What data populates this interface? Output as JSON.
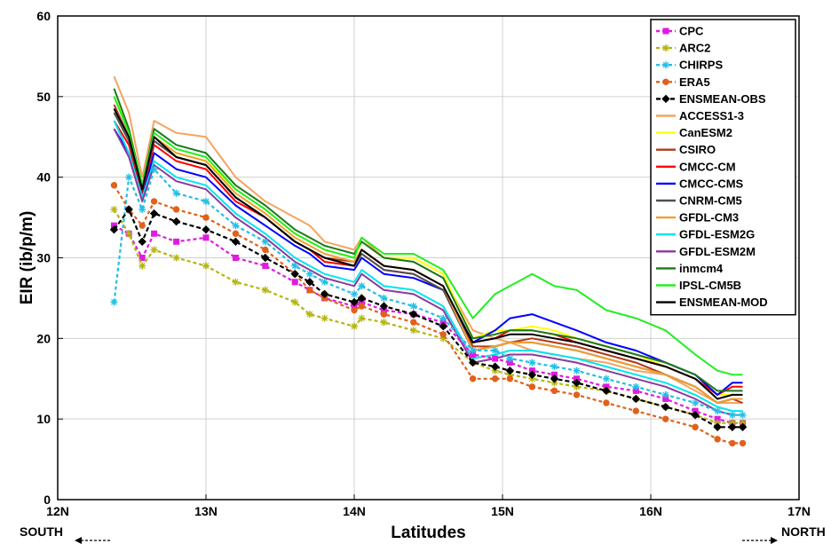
{
  "chart_data": {
    "type": "line",
    "xlabel": "Latitudes",
    "ylabel": "EIR (ib/p/m)",
    "xlim": [
      12,
      17
    ],
    "ylim": [
      0,
      60
    ],
    "xticks": [
      12,
      13,
      14,
      15,
      16,
      17
    ],
    "xtick_labels": [
      "12N",
      "13N",
      "14N",
      "15N",
      "16N",
      "17N"
    ],
    "yticks": [
      0,
      10,
      20,
      30,
      40,
      50,
      60
    ],
    "ytick_labels": [
      "0",
      "10",
      "20",
      "30",
      "40",
      "50",
      "60"
    ],
    "grid": true,
    "legend_position": "top-right",
    "direction_labels": {
      "south": "SOUTH",
      "north": "NORTH"
    },
    "key_points": [
      12.38,
      12.48,
      12.57,
      12.65,
      12.8,
      13.0,
      13.2,
      13.4,
      13.6,
      13.7,
      13.8,
      14.0,
      14.05,
      14.2,
      14.4,
      14.6,
      14.8,
      14.95,
      15.05,
      15.2,
      15.35,
      15.5,
      15.7,
      15.9,
      16.1,
      16.3,
      16.45,
      16.55,
      16.62
    ],
    "series": [
      {
        "name": "CPC",
        "color": "#e01be0",
        "dash": "4,3",
        "marker": "square",
        "values": [
          34,
          33,
          30,
          33,
          32,
          32.5,
          30,
          29,
          27,
          26,
          25,
          24,
          24.5,
          23.5,
          23,
          22,
          18,
          17.5,
          17,
          16,
          15.5,
          15,
          14,
          13.5,
          12.5,
          11,
          10,
          9.5,
          9.5
        ]
      },
      {
        "name": "ARC2",
        "color": "#b5b512",
        "dash": "4,3",
        "marker": "star",
        "values": [
          36,
          33,
          29,
          31,
          30,
          29,
          27,
          26,
          24.5,
          23,
          22.5,
          21.5,
          22.5,
          22,
          21,
          20,
          17,
          16,
          15.5,
          15,
          14.5,
          14,
          13.5,
          12.5,
          11.5,
          10.5,
          9.5,
          9.5,
          9.5
        ]
      },
      {
        "name": "CHIRPS",
        "color": "#22bfe6",
        "dash": "4,3",
        "marker": "star",
        "values": [
          24.5,
          40,
          36,
          41,
          38,
          37,
          34,
          32,
          29,
          28,
          27,
          25.5,
          26.5,
          25,
          24,
          22.5,
          18.5,
          18.5,
          17.5,
          17,
          16.5,
          16,
          15,
          14,
          13,
          12,
          11,
          10.5,
          10.5
        ]
      },
      {
        "name": "ERA5",
        "color": "#e0611b",
        "dash": "4,3",
        "marker": "circle",
        "values": [
          39,
          36,
          34,
          37,
          36,
          35,
          33,
          31,
          28,
          26,
          25,
          23.5,
          24,
          23,
          22,
          20.5,
          15,
          15,
          15,
          14,
          13.5,
          13,
          12,
          11,
          10,
          9,
          7.5,
          7,
          7
        ]
      },
      {
        "name": "ENSMEAN-OBS",
        "color": "#000000",
        "dash": "5,3",
        "marker": "diamond",
        "values": [
          33.5,
          36,
          32,
          35.5,
          34.5,
          33.5,
          32,
          30,
          28,
          27,
          25.5,
          24.5,
          25,
          24,
          23,
          21.5,
          17,
          16.5,
          16,
          15.5,
          15,
          14.5,
          13.5,
          12.5,
          11.5,
          10.5,
          9,
          9,
          9
        ]
      },
      {
        "name": "ACCESS1-3",
        "color": "#f4a460",
        "dash": "",
        "marker": "none",
        "values": [
          52.5,
          48,
          40,
          47,
          45.5,
          45,
          40,
          37,
          35,
          34,
          32,
          31,
          32.5,
          30,
          29.5,
          27.5,
          21,
          20,
          19.5,
          18.5,
          18,
          17.5,
          17,
          16,
          15.5,
          13.5,
          12,
          12,
          12
        ]
      },
      {
        "name": "CanESM2",
        "color": "#ffff00",
        "dash": "",
        "marker": "none",
        "values": [
          50,
          46,
          39,
          45,
          43,
          42,
          38.5,
          36,
          33,
          32,
          31,
          30,
          32,
          30,
          30,
          28,
          20,
          21,
          21,
          21.5,
          21,
          20,
          19,
          18,
          16.5,
          15,
          13,
          13,
          13
        ]
      },
      {
        "name": "CSIRO",
        "color": "#b03a1a",
        "dash": "",
        "marker": "none",
        "values": [
          49,
          45,
          38.5,
          44.5,
          42.5,
          41.5,
          37.5,
          35,
          32,
          31,
          30,
          29.5,
          31,
          29,
          28.5,
          26.5,
          19,
          19,
          19.5,
          20,
          19.5,
          19,
          18,
          17,
          15.5,
          14,
          12,
          12.5,
          12
        ]
      },
      {
        "name": "CMCC-CM",
        "color": "#ff0000",
        "dash": "",
        "marker": "none",
        "values": [
          47,
          44,
          38,
          44,
          42,
          41,
          37,
          35,
          32,
          31,
          29.5,
          29,
          30.5,
          28.5,
          28,
          26,
          19.5,
          20,
          21,
          21,
          20.5,
          19.5,
          18.5,
          17.5,
          16.5,
          15,
          13,
          14,
          14
        ]
      },
      {
        "name": "CMCC-CMS",
        "color": "#0000ff",
        "dash": "",
        "marker": "none",
        "values": [
          46,
          43,
          37.5,
          43,
          41,
          40,
          36.5,
          34,
          31.5,
          30.5,
          29,
          28.5,
          30,
          28,
          27.5,
          26,
          19.5,
          21,
          22.5,
          23,
          22,
          21,
          19.5,
          18.5,
          17,
          15.5,
          13,
          14.5,
          14.5
        ]
      },
      {
        "name": "CNRM-CM5",
        "color": "#505050",
        "dash": "",
        "marker": "none",
        "values": [
          48,
          44.5,
          38.5,
          44.5,
          42.5,
          41.5,
          37.5,
          35,
          32,
          31,
          30,
          29,
          30.5,
          28.5,
          28,
          26,
          18.5,
          19,
          19.5,
          19.5,
          19,
          18.5,
          17.5,
          16.5,
          15.5,
          14,
          12,
          12.5,
          12.5
        ]
      },
      {
        "name": "GFDL-CM3",
        "color": "#f0a030",
        "dash": "",
        "marker": "none",
        "values": [
          48.5,
          45,
          39,
          45,
          43,
          42,
          38,
          35.5,
          32.5,
          31.5,
          30.5,
          29.5,
          31,
          29,
          28.5,
          26.5,
          18.5,
          19,
          19.5,
          19.5,
          19,
          18.5,
          17.5,
          16.5,
          15.5,
          14,
          12,
          12.5,
          12.5
        ]
      },
      {
        "name": "GFDL-ESM2G",
        "color": "#00e5ee",
        "dash": "",
        "marker": "none",
        "values": [
          47,
          43,
          37.5,
          42,
          40,
          39,
          35.5,
          33,
          30,
          29,
          28,
          27,
          28.5,
          26.5,
          26,
          24,
          17.5,
          18,
          18.5,
          18.5,
          18,
          17.5,
          16.5,
          15.5,
          14.5,
          13,
          11.5,
          11,
          11
        ]
      },
      {
        "name": "GFDL-ESM2M",
        "color": "#8b3a9e",
        "dash": "",
        "marker": "none",
        "values": [
          46,
          42.5,
          37,
          41.5,
          39.5,
          38.5,
          35,
          32.5,
          29.5,
          28.5,
          27.5,
          26.5,
          28,
          26,
          25.5,
          23.5,
          17,
          17.5,
          18,
          18,
          17.5,
          17,
          16,
          15,
          14,
          12.5,
          11,
          10.5,
          10.5
        ]
      },
      {
        "name": "inmcm4",
        "color": "#1a7a1a",
        "dash": "",
        "marker": "none",
        "values": [
          51,
          46,
          39,
          46,
          44,
          43,
          39,
          36.5,
          33.5,
          32.5,
          31.5,
          30.5,
          32,
          30,
          29.5,
          27.5,
          20,
          20.5,
          21,
          21,
          20.5,
          20,
          19,
          18,
          17,
          15.5,
          13.5,
          13.5,
          13.5
        ]
      },
      {
        "name": "IPSL-CM5B",
        "color": "#22ee22",
        "dash": "",
        "marker": "none",
        "values": [
          50,
          45.5,
          39,
          45.5,
          43.5,
          42.5,
          38.5,
          36,
          33,
          32,
          31,
          30,
          32.5,
          30.5,
          30.5,
          28.5,
          22.5,
          25.5,
          26.5,
          28,
          26.5,
          26,
          23.5,
          22.5,
          21,
          18,
          16,
          15.5,
          15.5
        ]
      },
      {
        "name": "ENSMEAN-MOD",
        "color": "#000000",
        "dash": "",
        "marker": "none",
        "values": [
          48.5,
          45,
          38.5,
          45,
          42.5,
          41.5,
          37.5,
          35,
          32,
          31,
          30,
          29,
          31,
          29,
          28.5,
          26.5,
          19.5,
          20,
          20.5,
          20.5,
          20,
          19.5,
          18.5,
          17.5,
          16.5,
          15,
          12.5,
          13,
          13
        ]
      }
    ]
  }
}
